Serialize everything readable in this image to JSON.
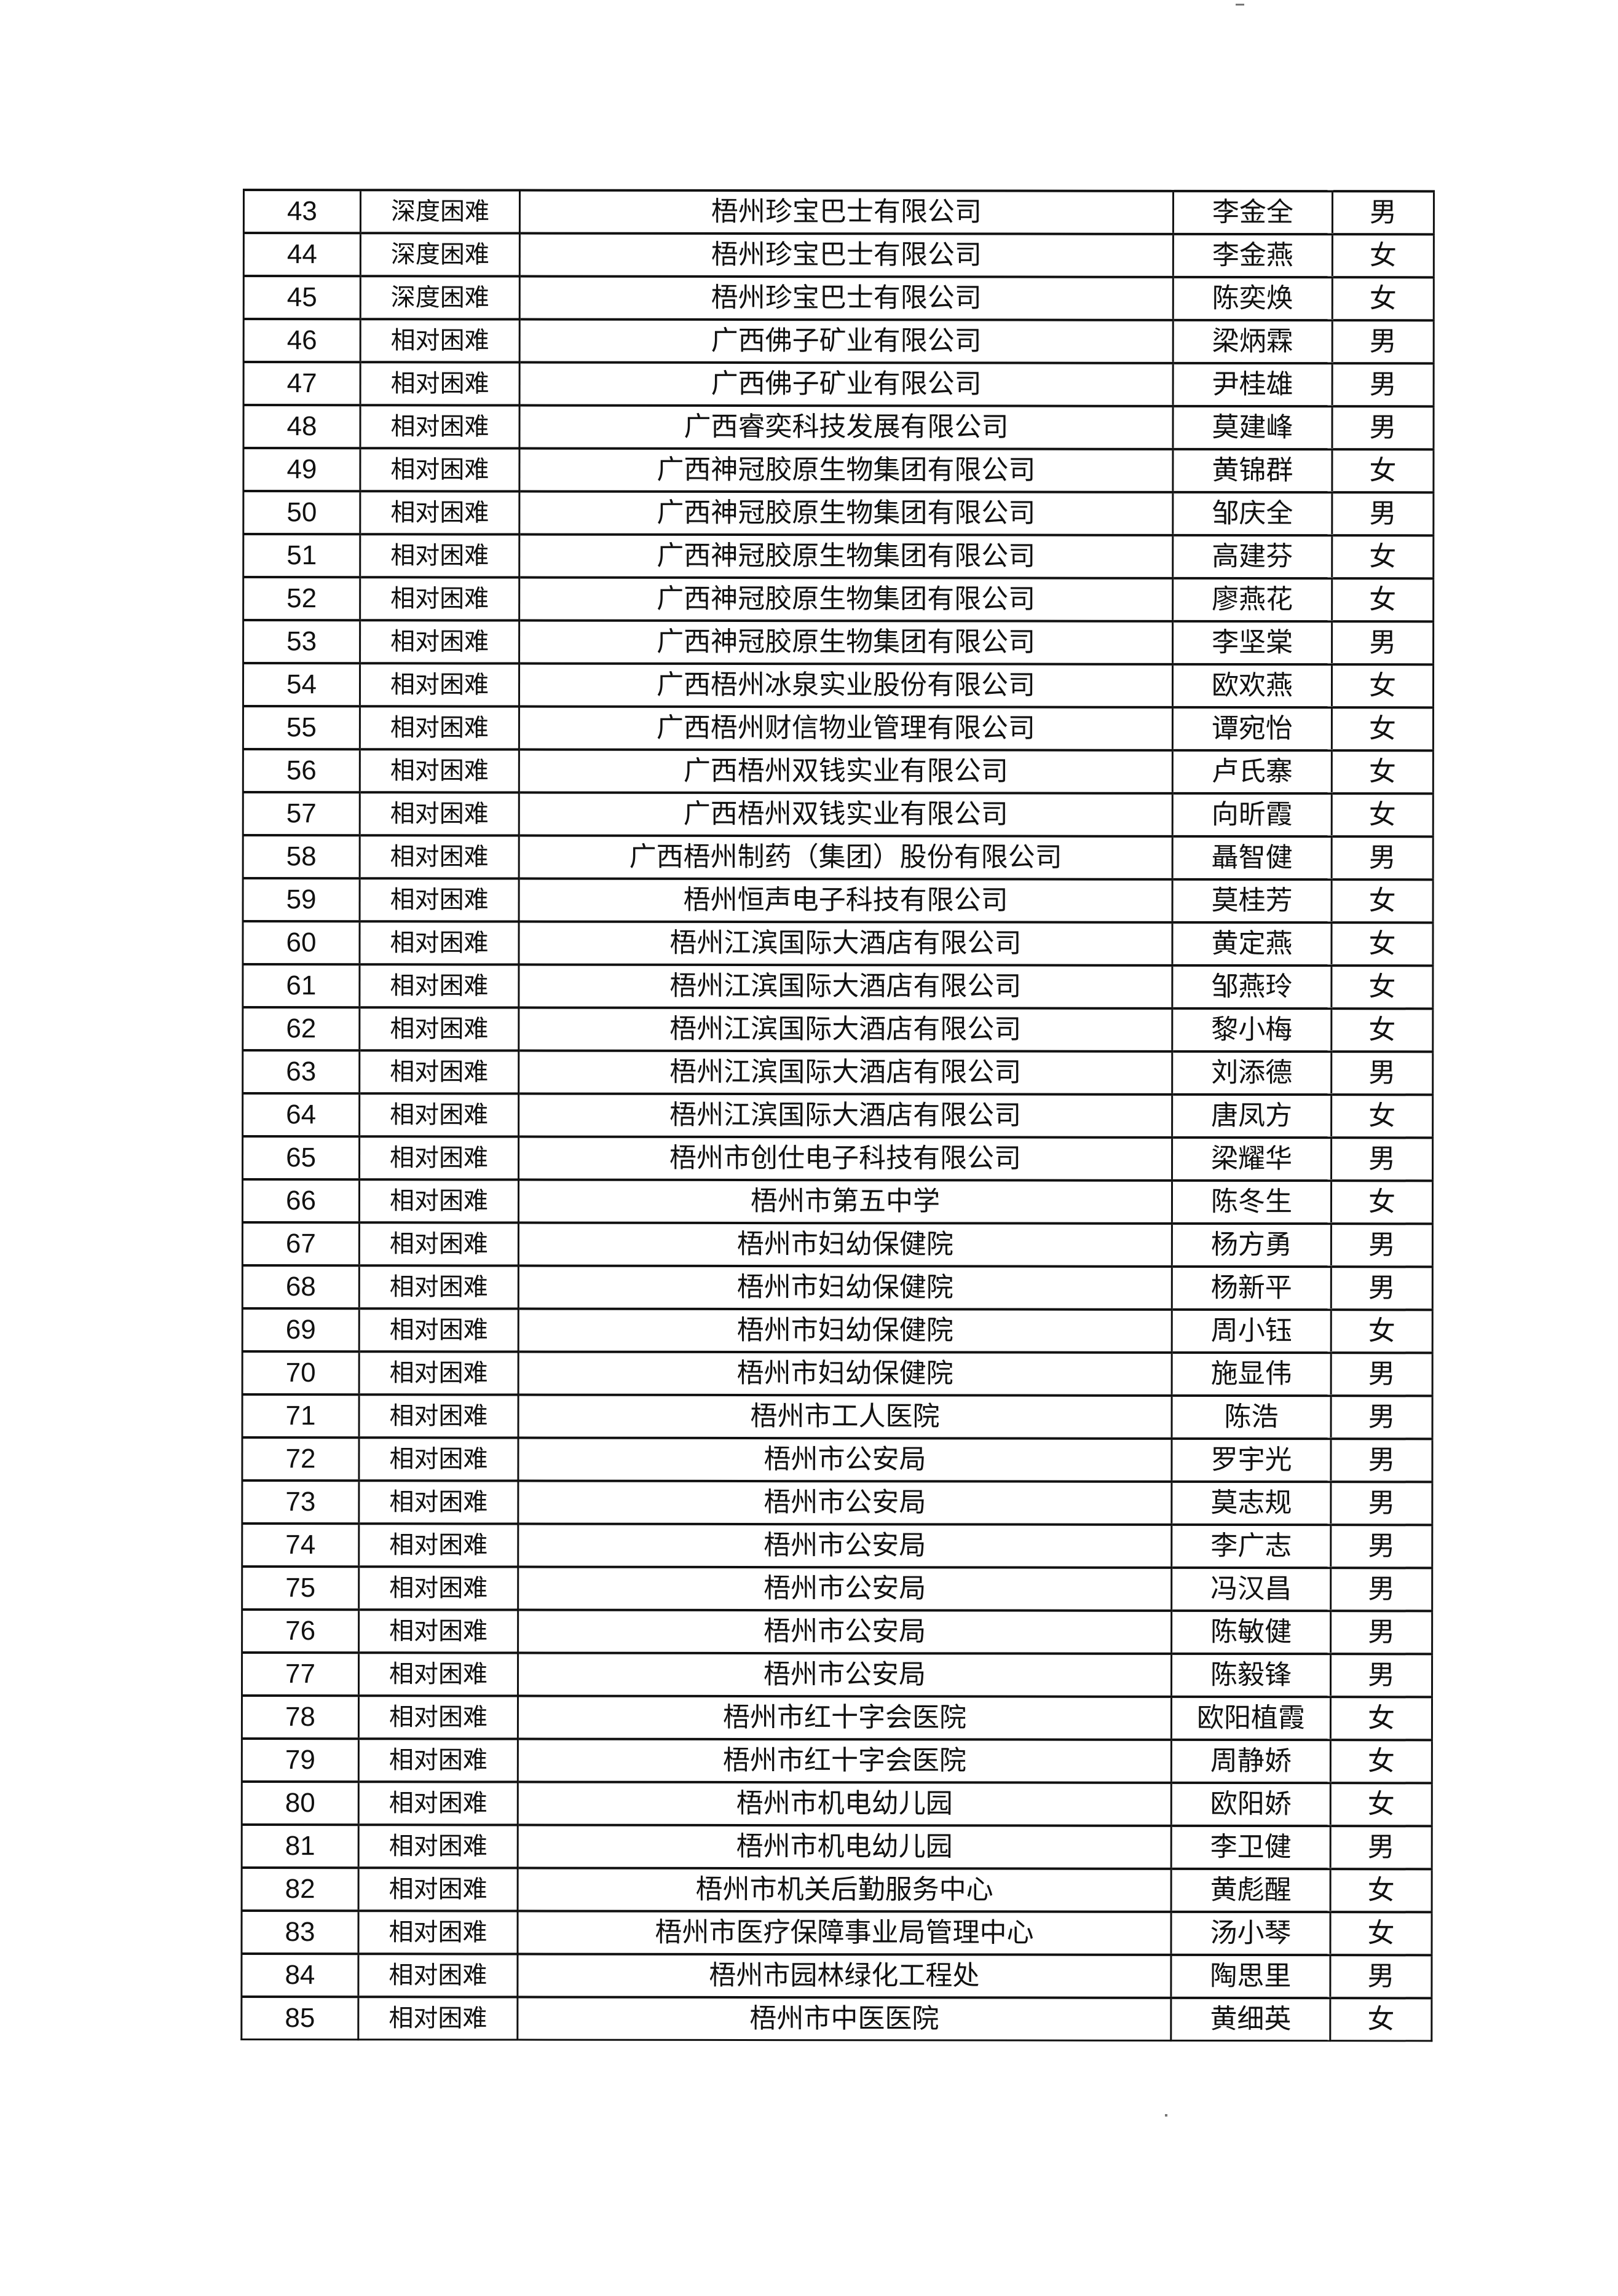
{
  "table": {
    "rows": [
      [
        "43",
        "深度困难",
        "梧州珍宝巴士有限公司",
        "李金全",
        "男"
      ],
      [
        "44",
        "深度困难",
        "梧州珍宝巴士有限公司",
        "李金燕",
        "女"
      ],
      [
        "45",
        "深度困难",
        "梧州珍宝巴士有限公司",
        "陈奕焕",
        "女"
      ],
      [
        "46",
        "相对困难",
        "广西佛子矿业有限公司",
        "梁炳霖",
        "男"
      ],
      [
        "47",
        "相对困难",
        "广西佛子矿业有限公司",
        "尹桂雄",
        "男"
      ],
      [
        "48",
        "相对困难",
        "广西睿奕科技发展有限公司",
        "莫建峰",
        "男"
      ],
      [
        "49",
        "相对困难",
        "广西神冠胶原生物集团有限公司",
        "黄锦群",
        "女"
      ],
      [
        "50",
        "相对困难",
        "广西神冠胶原生物集团有限公司",
        "邹庆全",
        "男"
      ],
      [
        "51",
        "相对困难",
        "广西神冠胶原生物集团有限公司",
        "高建芬",
        "女"
      ],
      [
        "52",
        "相对困难",
        "广西神冠胶原生物集团有限公司",
        "廖燕花",
        "女"
      ],
      [
        "53",
        "相对困难",
        "广西神冠胶原生物集团有限公司",
        "李坚棠",
        "男"
      ],
      [
        "54",
        "相对困难",
        "广西梧州冰泉实业股份有限公司",
        "欧欢燕",
        "女"
      ],
      [
        "55",
        "相对困难",
        "广西梧州财信物业管理有限公司",
        "谭宛怡",
        "女"
      ],
      [
        "56",
        "相对困难",
        "广西梧州双钱实业有限公司",
        "卢氏寨",
        "女"
      ],
      [
        "57",
        "相对困难",
        "广西梧州双钱实业有限公司",
        "向昕霞",
        "女"
      ],
      [
        "58",
        "相对困难",
        "广西梧州制药（集团）股份有限公司",
        "聶智健",
        "男"
      ],
      [
        "59",
        "相对困难",
        "梧州恒声电子科技有限公司",
        "莫桂芳",
        "女"
      ],
      [
        "60",
        "相对困难",
        "梧州江滨国际大酒店有限公司",
        "黄定燕",
        "女"
      ],
      [
        "61",
        "相对困难",
        "梧州江滨国际大酒店有限公司",
        "邹燕玲",
        "女"
      ],
      [
        "62",
        "相对困难",
        "梧州江滨国际大酒店有限公司",
        "黎小梅",
        "女"
      ],
      [
        "63",
        "相对困难",
        "梧州江滨国际大酒店有限公司",
        "刘添德",
        "男"
      ],
      [
        "64",
        "相对困难",
        "梧州江滨国际大酒店有限公司",
        "唐凤方",
        "女"
      ],
      [
        "65",
        "相对困难",
        "梧州市创仕电子科技有限公司",
        "梁耀华",
        "男"
      ],
      [
        "66",
        "相对困难",
        "梧州市第五中学",
        "陈冬生",
        "女"
      ],
      [
        "67",
        "相对困难",
        "梧州市妇幼保健院",
        "杨方勇",
        "男"
      ],
      [
        "68",
        "相对困难",
        "梧州市妇幼保健院",
        "杨新平",
        "男"
      ],
      [
        "69",
        "相对困难",
        "梧州市妇幼保健院",
        "周小钰",
        "女"
      ],
      [
        "70",
        "相对困难",
        "梧州市妇幼保健院",
        "施显伟",
        "男"
      ],
      [
        "71",
        "相对困难",
        "梧州市工人医院",
        "陈浩",
        "男"
      ],
      [
        "72",
        "相对困难",
        "梧州市公安局",
        "罗宇光",
        "男"
      ],
      [
        "73",
        "相对困难",
        "梧州市公安局",
        "莫志规",
        "男"
      ],
      [
        "74",
        "相对困难",
        "梧州市公安局",
        "李广志",
        "男"
      ],
      [
        "75",
        "相对困难",
        "梧州市公安局",
        "冯汉昌",
        "男"
      ],
      [
        "76",
        "相对困难",
        "梧州市公安局",
        "陈敏健",
        "男"
      ],
      [
        "77",
        "相对困难",
        "梧州市公安局",
        "陈毅锋",
        "男"
      ],
      [
        "78",
        "相对困难",
        "梧州市红十字会医院",
        "欧阳植霞",
        "女"
      ],
      [
        "79",
        "相对困难",
        "梧州市红十字会医院",
        "周静娇",
        "女"
      ],
      [
        "80",
        "相对困难",
        "梧州市机电幼儿园",
        "欧阳娇",
        "女"
      ],
      [
        "81",
        "相对困难",
        "梧州市机电幼儿园",
        "李卫健",
        "男"
      ],
      [
        "82",
        "相对困难",
        "梧州市机关后勤服务中心",
        "黄彪醒",
        "女"
      ],
      [
        "83",
        "相对困难",
        "梧州市医疗保障事业局管理中心",
        "汤小琴",
        "女"
      ],
      [
        "84",
        "相对困难",
        "梧州市园林绿化工程处",
        "陶思里",
        "男"
      ],
      [
        "85",
        "相对困难",
        "梧州市中医医院",
        "黄细英",
        "女"
      ]
    ]
  }
}
